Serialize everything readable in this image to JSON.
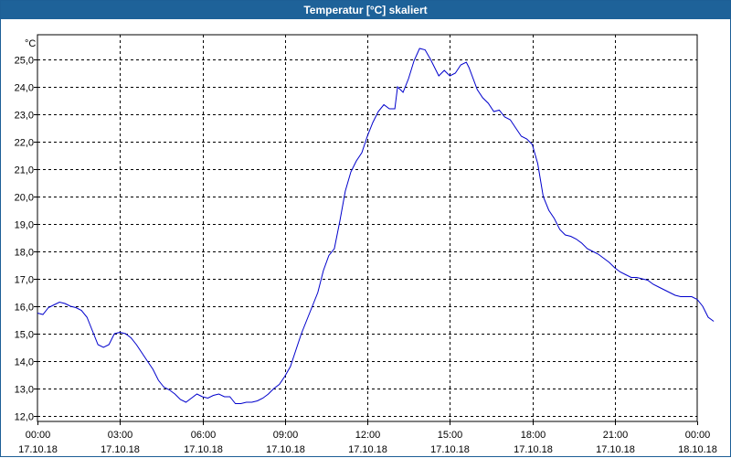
{
  "window": {
    "title": "Temperatur [°C] skaliert"
  },
  "chart_data": {
    "type": "line",
    "title": "Temperatur [°C] skaliert",
    "yunit": "°C",
    "xlabel": "",
    "ylabel": "",
    "ylim": [
      11.8,
      25.9
    ],
    "xlim": [
      0,
      24
    ],
    "grid": true,
    "colors": {
      "line": "#0000cc",
      "grid": "#000000",
      "titlebar": "#1e6299"
    },
    "yticks": [
      "12,0",
      "13,0",
      "14,0",
      "15,0",
      "16,0",
      "17,0",
      "18,0",
      "19,0",
      "20,0",
      "21,0",
      "22,0",
      "23,0",
      "24,0",
      "25,0"
    ],
    "xticks": [
      {
        "time": "00:00",
        "date": "17.10.18"
      },
      {
        "time": "03:00",
        "date": "17.10.18"
      },
      {
        "time": "06:00",
        "date": "17.10.18"
      },
      {
        "time": "09:00",
        "date": "17.10.18"
      },
      {
        "time": "12:00",
        "date": "17.10.18"
      },
      {
        "time": "15:00",
        "date": "17.10.18"
      },
      {
        "time": "18:00",
        "date": "17.10.18"
      },
      {
        "time": "21:00",
        "date": "17.10.18"
      },
      {
        "time": "00:00",
        "date": "18.10.18"
      }
    ],
    "series": [
      {
        "points": [
          [
            0.0,
            15.75
          ],
          [
            0.2,
            15.7
          ],
          [
            0.4,
            15.95
          ],
          [
            0.6,
            16.05
          ],
          [
            0.8,
            16.15
          ],
          [
            1.0,
            16.1
          ],
          [
            1.2,
            16.0
          ],
          [
            1.4,
            15.95
          ],
          [
            1.6,
            15.85
          ],
          [
            1.8,
            15.6
          ],
          [
            2.0,
            15.1
          ],
          [
            2.2,
            14.6
          ],
          [
            2.4,
            14.5
          ],
          [
            2.6,
            14.6
          ],
          [
            2.8,
            15.0
          ],
          [
            3.0,
            15.05
          ],
          [
            3.2,
            15.0
          ],
          [
            3.4,
            14.85
          ],
          [
            3.6,
            14.6
          ],
          [
            3.8,
            14.3
          ],
          [
            4.0,
            14.0
          ],
          [
            4.2,
            13.7
          ],
          [
            4.4,
            13.3
          ],
          [
            4.6,
            13.05
          ],
          [
            4.8,
            12.95
          ],
          [
            5.0,
            12.8
          ],
          [
            5.2,
            12.6
          ],
          [
            5.4,
            12.5
          ],
          [
            5.6,
            12.65
          ],
          [
            5.8,
            12.8
          ],
          [
            6.0,
            12.7
          ],
          [
            6.2,
            12.65
          ],
          [
            6.4,
            12.75
          ],
          [
            6.6,
            12.8
          ],
          [
            6.8,
            12.7
          ],
          [
            7.0,
            12.7
          ],
          [
            7.2,
            12.45
          ],
          [
            7.4,
            12.45
          ],
          [
            7.6,
            12.5
          ],
          [
            7.8,
            12.5
          ],
          [
            8.0,
            12.55
          ],
          [
            8.2,
            12.65
          ],
          [
            8.4,
            12.8
          ],
          [
            8.6,
            13.0
          ],
          [
            8.8,
            13.15
          ],
          [
            9.0,
            13.45
          ],
          [
            9.2,
            13.8
          ],
          [
            9.4,
            14.4
          ],
          [
            9.6,
            15.0
          ],
          [
            9.8,
            15.5
          ],
          [
            10.0,
            16.0
          ],
          [
            10.2,
            16.5
          ],
          [
            10.4,
            17.3
          ],
          [
            10.6,
            17.85
          ],
          [
            10.8,
            18.1
          ],
          [
            11.0,
            19.1
          ],
          [
            11.2,
            20.2
          ],
          [
            11.4,
            20.9
          ],
          [
            11.6,
            21.3
          ],
          [
            11.8,
            21.6
          ],
          [
            12.0,
            22.2
          ],
          [
            12.2,
            22.7
          ],
          [
            12.4,
            23.1
          ],
          [
            12.6,
            23.35
          ],
          [
            12.8,
            23.2
          ],
          [
            13.0,
            23.2
          ],
          [
            13.1,
            24.0
          ],
          [
            13.3,
            23.8
          ],
          [
            13.5,
            24.3
          ],
          [
            13.7,
            24.95
          ],
          [
            13.9,
            25.4
          ],
          [
            14.1,
            25.35
          ],
          [
            14.3,
            25.0
          ],
          [
            14.5,
            24.6
          ],
          [
            14.6,
            24.4
          ],
          [
            14.8,
            24.6
          ],
          [
            15.0,
            24.4
          ],
          [
            15.2,
            24.5
          ],
          [
            15.4,
            24.8
          ],
          [
            15.6,
            24.9
          ],
          [
            15.7,
            24.7
          ],
          [
            16.0,
            23.9
          ],
          [
            16.2,
            23.6
          ],
          [
            16.4,
            23.4
          ],
          [
            16.6,
            23.1
          ],
          [
            16.8,
            23.15
          ],
          [
            17.0,
            22.9
          ],
          [
            17.2,
            22.8
          ],
          [
            17.4,
            22.5
          ],
          [
            17.6,
            22.2
          ],
          [
            17.8,
            22.1
          ],
          [
            18.0,
            21.9
          ],
          [
            18.2,
            21.2
          ],
          [
            18.4,
            20.0
          ],
          [
            18.6,
            19.5
          ],
          [
            18.8,
            19.2
          ],
          [
            19.0,
            18.8
          ],
          [
            19.2,
            18.6
          ],
          [
            19.4,
            18.55
          ],
          [
            19.6,
            18.45
          ],
          [
            19.8,
            18.3
          ],
          [
            20.0,
            18.1
          ],
          [
            20.2,
            18.0
          ],
          [
            20.4,
            17.9
          ],
          [
            20.6,
            17.75
          ],
          [
            20.8,
            17.6
          ],
          [
            21.0,
            17.4
          ],
          [
            21.2,
            17.25
          ],
          [
            21.4,
            17.15
          ],
          [
            21.6,
            17.05
          ],
          [
            21.8,
            17.05
          ],
          [
            22.0,
            17.0
          ],
          [
            22.2,
            16.95
          ],
          [
            22.4,
            16.8
          ],
          [
            22.6,
            16.7
          ],
          [
            22.8,
            16.6
          ],
          [
            23.0,
            16.5
          ],
          [
            23.2,
            16.4
          ],
          [
            23.4,
            16.35
          ],
          [
            23.6,
            16.35
          ],
          [
            23.8,
            16.35
          ],
          [
            24.0,
            16.25
          ],
          [
            24.2,
            16.0
          ],
          [
            24.4,
            15.6
          ],
          [
            24.6,
            15.45
          ]
        ]
      }
    ]
  }
}
